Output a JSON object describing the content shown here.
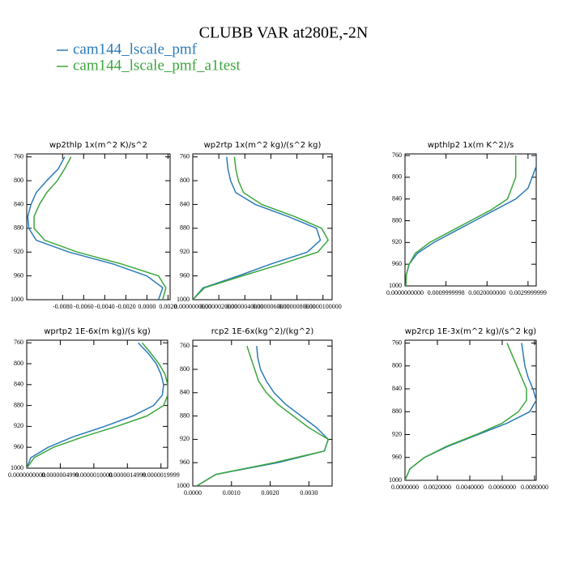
{
  "title": "CLUBB VAR at280E,-2N",
  "legend": [
    {
      "name": "cam144_lscale_pmf",
      "color": "#2b7bb9"
    },
    {
      "name": "cam144_lscale_pmf_a1test",
      "color": "#3ca63c"
    }
  ],
  "chart_data": [
    {
      "type": "line",
      "title": "wp2thlp  1x(m^2 K)/s^2",
      "y": [
        760,
        780,
        800,
        820,
        840,
        860,
        880,
        900,
        920,
        940,
        960,
        980,
        1000
      ],
      "series": [
        {
          "values": [
            -0.0078,
            -0.0084,
            -0.0095,
            -0.0105,
            -0.011,
            -0.0113,
            -0.0112,
            -0.0105,
            -0.0074,
            -0.0032,
            0.0,
            0.0015,
            0.0011
          ]
        },
        {
          "values": [
            -0.0072,
            -0.0078,
            -0.0085,
            -0.0095,
            -0.0102,
            -0.0107,
            -0.0107,
            -0.0097,
            -0.0066,
            -0.0024,
            0.0011,
            0.0018,
            0.0015
          ]
        }
      ],
      "xlim": [
        -0.0114,
        0.0022
      ],
      "ylim": [
        1000,
        755
      ],
      "xticks": [
        {
          "value": -0.008,
          "label": "-0.0080"
        },
        {
          "value": -0.006,
          "label": "-0.0060"
        },
        {
          "value": -0.004,
          "label": "-0.0040"
        },
        {
          "value": -0.002,
          "label": "-0.0020"
        },
        {
          "value": 0,
          "label": "0.0000"
        },
        {
          "value": 0.002,
          "label": "0.0020"
        }
      ],
      "yticks": [
        760,
        800,
        840,
        880,
        920,
        960,
        1000
      ]
    },
    {
      "type": "line",
      "title": "wp2rtp  1x(m^2 kg)/(s^2 kg)",
      "y": [
        760,
        780,
        800,
        820,
        840,
        860,
        880,
        900,
        920,
        940,
        960,
        980,
        1000
      ],
      "series": [
        {
          "values": [
            2.6e-06,
            2.7e-06,
            2.9e-06,
            3.3e-06,
            4.8e-06,
            7.3e-06,
            9.5e-06,
            9.8e-06,
            8.8e-06,
            6e-06,
            3.5e-06,
            8e-07,
            0
          ]
        },
        {
          "values": [
            3.2e-06,
            3.3e-06,
            3.5e-06,
            3.9e-06,
            5.3e-06,
            7.8e-06,
            9.9e-06,
            1.04e-05,
            9.6e-06,
            6.8e-06,
            3.8e-06,
            9e-07,
            0
          ]
        }
      ],
      "xlim": [
        0,
        1.07e-05
      ],
      "ylim": [
        1000,
        755
      ],
      "xticks": [
        {
          "value": 0,
          "label": "0.0000000000"
        },
        {
          "value": 2e-06,
          "label": "0.0000020000"
        },
        {
          "value": 4e-06,
          "label": "0.0000040000"
        },
        {
          "value": 6e-06,
          "label": "0.0000060000"
        },
        {
          "value": 8e-06,
          "label": "0.0000080000"
        },
        {
          "value": 1e-05,
          "label": "0.0000100000"
        }
      ],
      "yticks": [
        760,
        800,
        840,
        880,
        920,
        960,
        1000
      ]
    },
    {
      "type": "line",
      "title": "wpthlp2  1x(m K^2)/s",
      "y": [
        760,
        780,
        800,
        820,
        840,
        860,
        880,
        900,
        920,
        940,
        960,
        980,
        1000
      ],
      "series": [
        {
          "values": [
            0.0032,
            0.0032,
            0.0031,
            0.003,
            0.0027,
            0.0022,
            0.0017,
            0.0012,
            0.0007,
            0.0003,
            0.0001,
            3e-05,
            2e-05
          ]
        },
        {
          "values": [
            0.0027,
            0.0027,
            0.0027,
            0.0026,
            0.0025,
            0.0021,
            0.0016,
            0.0011,
            0.0006,
            0.00025,
            0.0001,
            3e-05,
            2e-05
          ]
        }
      ],
      "xlim": [
        0,
        0.0032
      ],
      "ylim": [
        1000,
        757
      ],
      "xticks": [
        {
          "value": 0,
          "label": "0.0000000000"
        },
        {
          "value": 0.001,
          "label": "0.0009999998"
        },
        {
          "value": 0.002,
          "label": "0.0020000000"
        },
        {
          "value": 0.003,
          "label": "0.0029999999"
        }
      ],
      "yticks": [
        760,
        800,
        840,
        880,
        920,
        960,
        1000
      ]
    },
    {
      "type": "line",
      "title": "wprtp2  1E-6x(m kg)/(s kg)",
      "y": [
        760,
        780,
        800,
        820,
        840,
        860,
        880,
        900,
        920,
        940,
        960,
        980,
        1000
      ],
      "series": [
        {
          "values": [
            1.66e-06,
            1.81e-06,
            1.93e-06,
            2e-06,
            2.04e-06,
            2.02e-06,
            1.89e-06,
            1.58e-06,
            1.16e-06,
            6.9e-07,
            3.2e-07,
            6e-08,
            0
          ]
        },
        {
          "values": [
            1.72e-06,
            1.85e-06,
            1.97e-06,
            2.06e-06,
            2.1e-06,
            2.1e-06,
            2.04e-06,
            1.79e-06,
            1.34e-06,
            8.4e-07,
            4e-07,
            1.1e-07,
            0
          ]
        }
      ],
      "xlim": [
        0,
        2.1e-06
      ],
      "ylim": [
        1000,
        755
      ],
      "xticks": [
        {
          "value": 0,
          "label": "0.0000000000"
        },
        {
          "value": 5e-07,
          "label": "0.0000004999"
        },
        {
          "value": 1e-06,
          "label": "0.0000010000"
        },
        {
          "value": 1.5e-06,
          "label": "0.0000014999"
        },
        {
          "value": 2e-06,
          "label": "0.0000019999"
        }
      ],
      "yticks": [
        760,
        800,
        840,
        880,
        920,
        960,
        1000
      ]
    },
    {
      "type": "line",
      "title": "rcp2  1E-6x(kg^2)/(kg^2)",
      "y": [
        760,
        780,
        800,
        820,
        840,
        860,
        880,
        900,
        920,
        940,
        960,
        980,
        1000
      ],
      "series": [
        {
          "values": [
            0.00165,
            0.00168,
            0.00175,
            0.0019,
            0.0021,
            0.0024,
            0.0028,
            0.0032,
            0.0035,
            0.0034,
            0.0022,
            0.0006,
            0.0001
          ]
        },
        {
          "values": [
            0.0014,
            0.0015,
            0.0016,
            0.0017,
            0.0019,
            0.0022,
            0.0026,
            0.003,
            0.0035,
            0.0034,
            0.0021,
            0.0006,
            0.0001
          ]
        }
      ],
      "xlim": [
        0,
        0.0036
      ],
      "ylim": [
        1000,
        750
      ],
      "xticks": [
        {
          "value": 0,
          "label": "0.0000"
        },
        {
          "value": 0.001,
          "label": "0.0010"
        },
        {
          "value": 0.002,
          "label": "0.0020"
        },
        {
          "value": 0.003,
          "label": "0.0030"
        }
      ],
      "yticks": [
        760,
        800,
        840,
        880,
        920,
        960,
        1000
      ]
    },
    {
      "type": "line",
      "title": "wp2rcp  1E-3x(m^2 kg)/(s^2 kg)",
      "y": [
        760,
        780,
        800,
        820,
        840,
        860,
        880,
        900,
        920,
        940,
        960,
        980,
        1000
      ],
      "series": [
        {
          "values": [
            0.0072,
            0.0073,
            0.0074,
            0.0076,
            0.0079,
            0.0081,
            0.0077,
            0.0063,
            0.0045,
            0.0027,
            0.0012,
            0.0003,
            0
          ]
        },
        {
          "values": [
            0.0063,
            0.0066,
            0.0069,
            0.0072,
            0.0075,
            0.0075,
            0.007,
            0.006,
            0.0044,
            0.0026,
            0.0012,
            0.0003,
            0
          ]
        }
      ],
      "xlim": [
        0,
        0.0081
      ],
      "ylim": [
        1000,
        755
      ],
      "xticks": [
        {
          "value": 0,
          "label": "0.0000000"
        },
        {
          "value": 0.002,
          "label": "0.0020000"
        },
        {
          "value": 0.004,
          "label": "0.0040000"
        },
        {
          "value": 0.006,
          "label": "0.0060000"
        },
        {
          "value": 0.008,
          "label": "0.0080000"
        }
      ],
      "yticks": [
        760,
        800,
        840,
        880,
        920,
        960,
        1000
      ]
    }
  ]
}
